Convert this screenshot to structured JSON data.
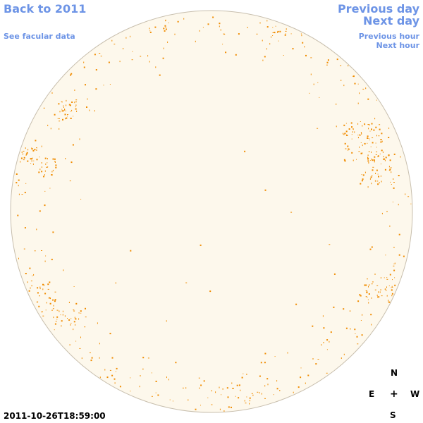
{
  "nav": {
    "back_label": "Back to 2011",
    "facular_label": "See facular data",
    "previous_day_label": "Previous day",
    "next_day_label": "Next day",
    "previous_hour_label": "Previous hour",
    "next_hour_label": "Next hour"
  },
  "timestamp": "2011-10-26T18:59:00",
  "compass": {
    "north": "N",
    "east": "E",
    "center": "+",
    "west": "W",
    "south": "S"
  },
  "colors": {
    "disk_fill": "#fdf8ec",
    "disk_stroke": "#c8bfae",
    "facula_color": "#f08c00",
    "link_color": "#6d94e6"
  }
}
